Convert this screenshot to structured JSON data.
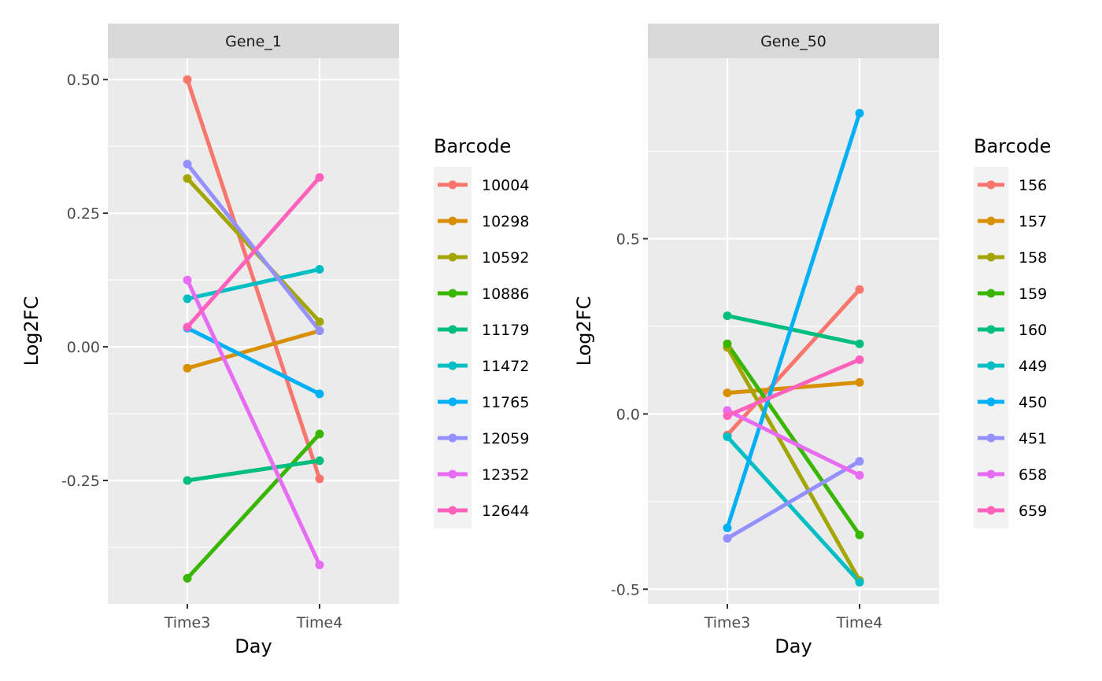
{
  "chart_data": [
    {
      "type": "line",
      "facet": "Gene_1",
      "xlabel": "Day",
      "ylabel": "Log2FC",
      "x": [
        "Time3",
        "Time4"
      ],
      "y_ticks": [
        "-0.25",
        "0.00",
        "0.25",
        "0.50"
      ],
      "y_tick_values": [
        -0.25,
        0.0,
        0.25,
        0.5
      ],
      "ylim": [
        -0.481,
        0.54
      ],
      "grid": true,
      "legend": {
        "title": "Barcode",
        "placement": "right"
      },
      "series": [
        {
          "name": "10004",
          "color": "#F8766D",
          "values": [
            0.5,
            -0.247
          ]
        },
        {
          "name": "10298",
          "color": "#D89000",
          "values": [
            -0.04,
            0.03
          ]
        },
        {
          "name": "10592",
          "color": "#A3A500",
          "values": [
            0.315,
            0.047
          ]
        },
        {
          "name": "10886",
          "color": "#39B600",
          "values": [
            -0.433,
            -0.163
          ]
        },
        {
          "name": "11179",
          "color": "#00BF7D",
          "values": [
            -0.25,
            -0.213
          ]
        },
        {
          "name": "11472",
          "color": "#00BFC4",
          "values": [
            0.09,
            0.145
          ]
        },
        {
          "name": "11765",
          "color": "#00B0F6",
          "values": [
            0.035,
            -0.088
          ]
        },
        {
          "name": "12059",
          "color": "#9590FF",
          "values": [
            0.342,
            0.03
          ]
        },
        {
          "name": "12352",
          "color": "#E76BF3",
          "values": [
            0.125,
            -0.408
          ]
        },
        {
          "name": "12644",
          "color": "#FF62BC",
          "values": [
            0.037,
            0.317
          ]
        }
      ]
    },
    {
      "type": "line",
      "facet": "Gene_50",
      "xlabel": "Day",
      "ylabel": "Log2FC",
      "x": [
        "Time3",
        "Time4"
      ],
      "y_ticks": [
        "-0.5",
        "0.0",
        "0.5"
      ],
      "y_tick_values": [
        -0.5,
        0.0,
        0.5
      ],
      "ylim": [
        -0.542,
        1.015
      ],
      "grid": true,
      "legend": {
        "title": "Barcode",
        "placement": "right"
      },
      "series": [
        {
          "name": "156",
          "color": "#F8766D",
          "values": [
            -0.06,
            0.355
          ]
        },
        {
          "name": "157",
          "color": "#D89000",
          "values": [
            0.06,
            0.09
          ]
        },
        {
          "name": "158",
          "color": "#A3A500",
          "values": [
            0.19,
            -0.475
          ]
        },
        {
          "name": "159",
          "color": "#39B600",
          "values": [
            0.2,
            -0.345
          ]
        },
        {
          "name": "160",
          "color": "#00BF7D",
          "values": [
            0.28,
            0.2
          ]
        },
        {
          "name": "449",
          "color": "#00BFC4",
          "values": [
            -0.065,
            -0.48
          ]
        },
        {
          "name": "450",
          "color": "#00B0F6",
          "values": [
            -0.325,
            0.858
          ]
        },
        {
          "name": "451",
          "color": "#9590FF",
          "values": [
            -0.355,
            -0.135
          ]
        },
        {
          "name": "658",
          "color": "#E76BF3",
          "values": [
            0.01,
            -0.175
          ]
        },
        {
          "name": "659",
          "color": "#FF62BC",
          "values": [
            -0.005,
            0.155
          ]
        }
      ]
    }
  ]
}
